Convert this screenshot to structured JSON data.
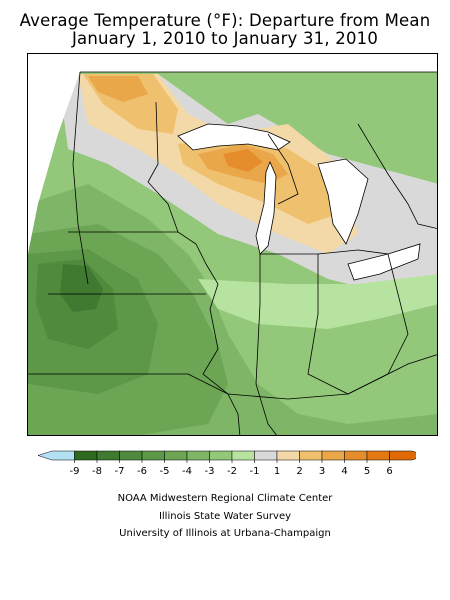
{
  "title": {
    "line1": "Average Temperature (°F): Departure from Mean",
    "line2": "January 1, 2010 to January 31, 2010"
  },
  "legend": {
    "ticks": [
      "-9",
      "-8",
      "-7",
      "-6",
      "-5",
      "-4",
      "-3",
      "-2",
      "-1",
      "1",
      "2",
      "3",
      "4",
      "5",
      "6"
    ],
    "colors": [
      "#b3e0f2",
      "#2d6a1f",
      "#3f7a30",
      "#4f8a3d",
      "#5d9748",
      "#6ca655",
      "#7eb566",
      "#93c779",
      "#b7e3a0",
      "#d9d9d9",
      "#f3d9a8",
      "#efc06e",
      "#eaa74a",
      "#e68d2b",
      "#e47913",
      "#e06a05"
    ]
  },
  "credits": [
    "NOAA Midwestern Regional Climate Center",
    "Illinois State Water Survey",
    "University of Illinois at Urbana-Champaign"
  ]
}
